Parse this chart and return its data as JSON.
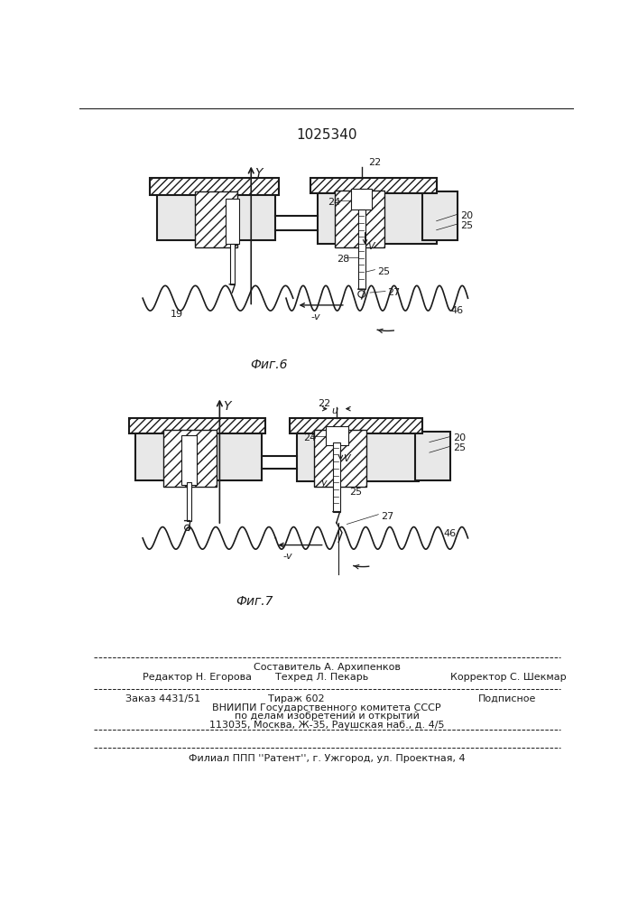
{
  "patent_number": "1025340",
  "fig6_label": "Фиг.6",
  "fig7_label": "Фиг.7",
  "bg_color": "#ffffff",
  "line_color": "#1a1a1a",
  "footer": {
    "line1": "Составитель А. Архипенков",
    "line2a": "Редактор Н. Егорова",
    "line2b": "Техред Л. Пекарь",
    "line2c": "Корректор С. Шекмар",
    "line3a": "Заказ 4431/51",
    "line3b": "Тираж 602",
    "line3c": "Подписное",
    "line4": "ВНИИПИ Государственного комитета СССР",
    "line5": "по делам изобретений и открытий",
    "line6": "113035, Москва, Ж-35, Раушская наб., д. 4/5",
    "line7": "Филиал ППП ''Pатент'', г. Ужгород, ул. Проектная, 4"
  }
}
